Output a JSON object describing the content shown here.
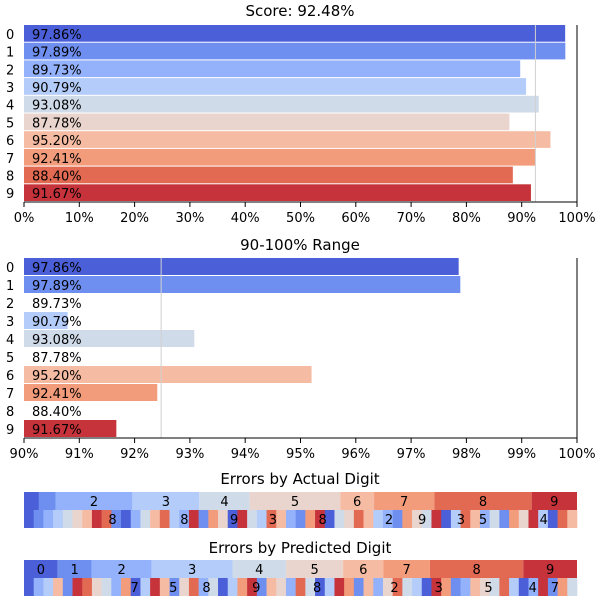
{
  "chart_data": [
    {
      "type": "bar",
      "orientation": "horizontal",
      "title": "Score: 92.48%",
      "categories": [
        "0",
        "1",
        "2",
        "3",
        "4",
        "5",
        "6",
        "7",
        "8",
        "9"
      ],
      "values": [
        97.86,
        97.89,
        89.73,
        90.79,
        93.08,
        87.78,
        95.2,
        92.41,
        88.4,
        91.67
      ],
      "value_labels": [
        "97.86%",
        "97.89%",
        "89.73%",
        "90.79%",
        "93.08%",
        "87.78%",
        "95.20%",
        "92.41%",
        "88.40%",
        "91.67%"
      ],
      "xlim": [
        0,
        100
      ],
      "xticks": [
        0,
        10,
        20,
        30,
        40,
        50,
        60,
        70,
        80,
        90,
        100
      ],
      "xtick_labels": [
        "0%",
        "10%",
        "20%",
        "30%",
        "40%",
        "50%",
        "60%",
        "70%",
        "80%",
        "90%",
        "100%"
      ],
      "reference_line": 92.48,
      "grid": false
    },
    {
      "type": "bar",
      "orientation": "horizontal",
      "title": "90-100% Range",
      "categories": [
        "0",
        "1",
        "2",
        "3",
        "4",
        "5",
        "6",
        "7",
        "8",
        "9"
      ],
      "values": [
        97.86,
        97.89,
        89.73,
        90.79,
        93.08,
        87.78,
        95.2,
        92.41,
        88.4,
        91.67
      ],
      "value_labels": [
        "97.86%",
        "97.89%",
        "89.73%",
        "90.79%",
        "93.08%",
        "87.78%",
        "95.20%",
        "92.41%",
        "88.40%",
        "91.67%"
      ],
      "xlim": [
        90,
        100
      ],
      "xticks": [
        90,
        91,
        92,
        93,
        94,
        95,
        96,
        97,
        98,
        99,
        100
      ],
      "xtick_labels": [
        "90%",
        "91%",
        "92%",
        "93%",
        "94%",
        "95%",
        "96%",
        "97%",
        "98%",
        "99%",
        "100%"
      ],
      "reference_line": 92.48,
      "grid": false
    },
    {
      "type": "stacked_bar",
      "title": "Errors by Actual Digit",
      "segments": [
        {
          "digit": "0",
          "share": 0.027,
          "label": ""
        },
        {
          "digit": "1",
          "share": 0.03,
          "label": ""
        },
        {
          "digit": "2",
          "share": 0.139,
          "label": "2"
        },
        {
          "digit": "3",
          "share": 0.121,
          "label": "3"
        },
        {
          "digit": "4",
          "share": 0.091,
          "label": "4"
        },
        {
          "digit": "5",
          "share": 0.164,
          "label": "5"
        },
        {
          "digit": "6",
          "share": 0.061,
          "label": "6"
        },
        {
          "digit": "7",
          "share": 0.109,
          "label": "7"
        },
        {
          "digit": "8",
          "share": 0.176,
          "label": "8"
        },
        {
          "digit": "9",
          "share": 0.082,
          "label": "9"
        }
      ],
      "sub_labels": [
        "8",
        "8",
        "9",
        "3",
        "8",
        "2",
        "9",
        "3",
        "5",
        "4"
      ]
    },
    {
      "type": "stacked_bar",
      "title": "Errors by Predicted Digit",
      "segments": [
        {
          "digit": "0",
          "share": 0.061,
          "label": "0"
        },
        {
          "digit": "1",
          "share": 0.061,
          "label": "1"
        },
        {
          "digit": "2",
          "share": 0.109,
          "label": "2"
        },
        {
          "digit": "3",
          "share": 0.146,
          "label": "3"
        },
        {
          "digit": "4",
          "share": 0.097,
          "label": "4"
        },
        {
          "digit": "5",
          "share": 0.103,
          "label": "5"
        },
        {
          "digit": "6",
          "share": 0.073,
          "label": "6"
        },
        {
          "digit": "7",
          "share": 0.084,
          "label": "7"
        },
        {
          "digit": "8",
          "share": 0.169,
          "label": "8"
        },
        {
          "digit": "9",
          "share": 0.097,
          "label": "9"
        }
      ],
      "sub_labels": [
        "7",
        "5",
        "8",
        "9",
        "8",
        "2",
        "3",
        "5",
        "4",
        "7"
      ]
    }
  ],
  "colors": {
    "0": "#4a5fd8",
    "1": "#6f8ff0",
    "2": "#93b2fb",
    "3": "#b4ccfa",
    "4": "#d0dbea",
    "5": "#e9d5cd",
    "6": "#f6bca3",
    "7": "#f39c7c",
    "8": "#e26952",
    "9": "#c6333a",
    "axis": "#000000",
    "refline": "#d0d0d0"
  }
}
